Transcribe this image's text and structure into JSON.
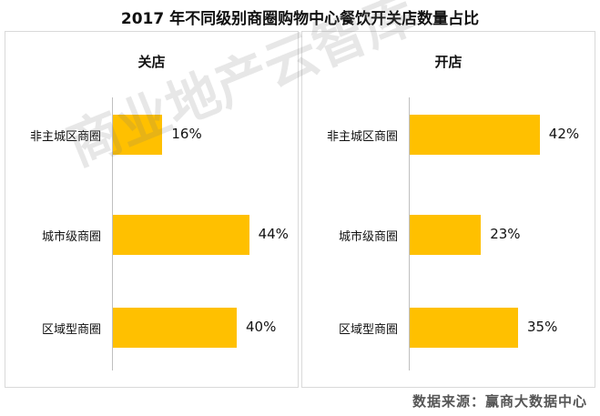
{
  "chart_data": [
    {
      "type": "bar",
      "orientation": "horizontal",
      "title": "关店",
      "categories": [
        "非主城区商圈",
        "城市级商圈",
        "区域型商圈"
      ],
      "values": [
        16,
        44,
        40
      ],
      "value_labels": [
        "16%",
        "44%",
        "40%"
      ],
      "xlim": [
        0,
        50
      ],
      "color": "#FFC000"
    },
    {
      "type": "bar",
      "orientation": "horizontal",
      "title": "开店",
      "categories": [
        "非主城区商圈",
        "城市级商圈",
        "区域型商圈"
      ],
      "values": [
        42,
        23,
        35
      ],
      "value_labels": [
        "42%",
        "23%",
        "35%"
      ],
      "xlim": [
        0,
        50
      ],
      "color": "#FFC000"
    }
  ],
  "header": {
    "title": "2017 年不同级别商圈购物中心餐饮开关店数量占比"
  },
  "footer": {
    "source": "数据来源：赢商大数据中心"
  },
  "watermark": {
    "text": "商业地产云智库"
  }
}
